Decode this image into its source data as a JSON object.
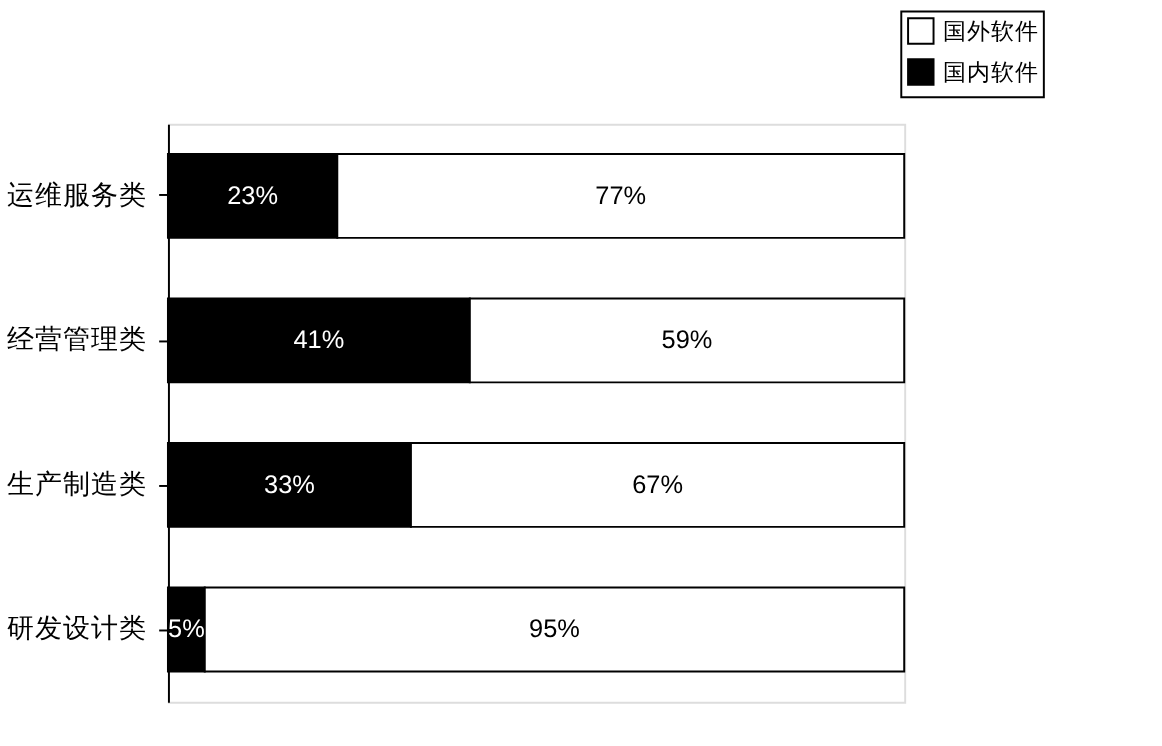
{
  "chart_data": {
    "type": "bar",
    "orientation": "horizontal",
    "stacked": true,
    "categories": [
      "运维服务类",
      "经营管理类",
      "生产制造类",
      "研发设计类"
    ],
    "series": [
      {
        "name": "国内软件",
        "color": "#000000",
        "values": [
          23,
          41,
          33,
          5
        ],
        "value_labels": [
          "23%",
          "41%",
          "33%",
          "5%"
        ]
      },
      {
        "name": "国外软件",
        "color": "#ffffff",
        "values": [
          77,
          59,
          67,
          95
        ],
        "value_labels": [
          "77%",
          "59%",
          "67%",
          "95%"
        ]
      }
    ],
    "xlim": [
      0,
      100
    ],
    "legend": "top right",
    "tick_labels": "y"
  }
}
